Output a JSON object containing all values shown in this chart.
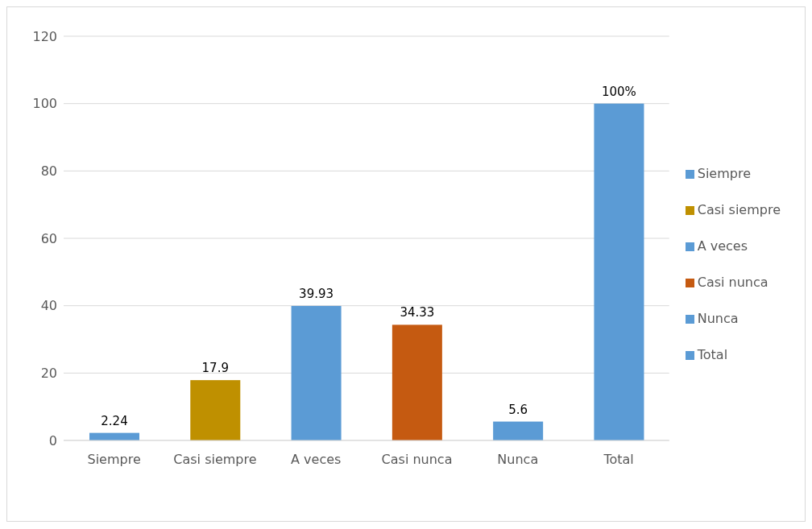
{
  "chart_data": {
    "type": "bar",
    "categories": [
      "Siempre",
      "Casi siempre",
      "A veces",
      "Casi nunca",
      "Nunca",
      "Total"
    ],
    "series": [
      {
        "name": "Siempre",
        "color": "#5b9bd5",
        "values": [
          2.24,
          null,
          null,
          null,
          null,
          null
        ],
        "value_labels": [
          "2.24",
          null,
          null,
          null,
          null,
          null
        ]
      },
      {
        "name": "Casi siempre",
        "color": "#bf9000",
        "values": [
          null,
          17.9,
          null,
          null,
          null,
          null
        ],
        "value_labels": [
          null,
          "17.9",
          null,
          null,
          null,
          null
        ]
      },
      {
        "name": "A veces",
        "color": "#5b9bd5",
        "values": [
          null,
          null,
          39.93,
          null,
          null,
          null
        ],
        "value_labels": [
          null,
          null,
          "39.93",
          null,
          null,
          null
        ]
      },
      {
        "name": "Casi nunca",
        "color": "#c55a11",
        "values": [
          null,
          null,
          null,
          34.33,
          null,
          null
        ],
        "value_labels": [
          null,
          null,
          null,
          "34.33",
          null,
          null
        ]
      },
      {
        "name": "Nunca",
        "color": "#5b9bd5",
        "values": [
          null,
          null,
          null,
          null,
          5.6,
          null
        ],
        "value_labels": [
          null,
          null,
          null,
          null,
          "5.6",
          null
        ]
      },
      {
        "name": "Total",
        "color": "#5b9bd5",
        "values": [
          null,
          null,
          null,
          null,
          null,
          100
        ],
        "value_labels": [
          null,
          null,
          null,
          null,
          null,
          "100%"
        ]
      }
    ],
    "stacked": true,
    "ylim": [
      0,
      120
    ],
    "yticks": [
      0,
      20,
      40,
      60,
      80,
      100,
      120
    ],
    "grid": "y",
    "legend": "right"
  }
}
